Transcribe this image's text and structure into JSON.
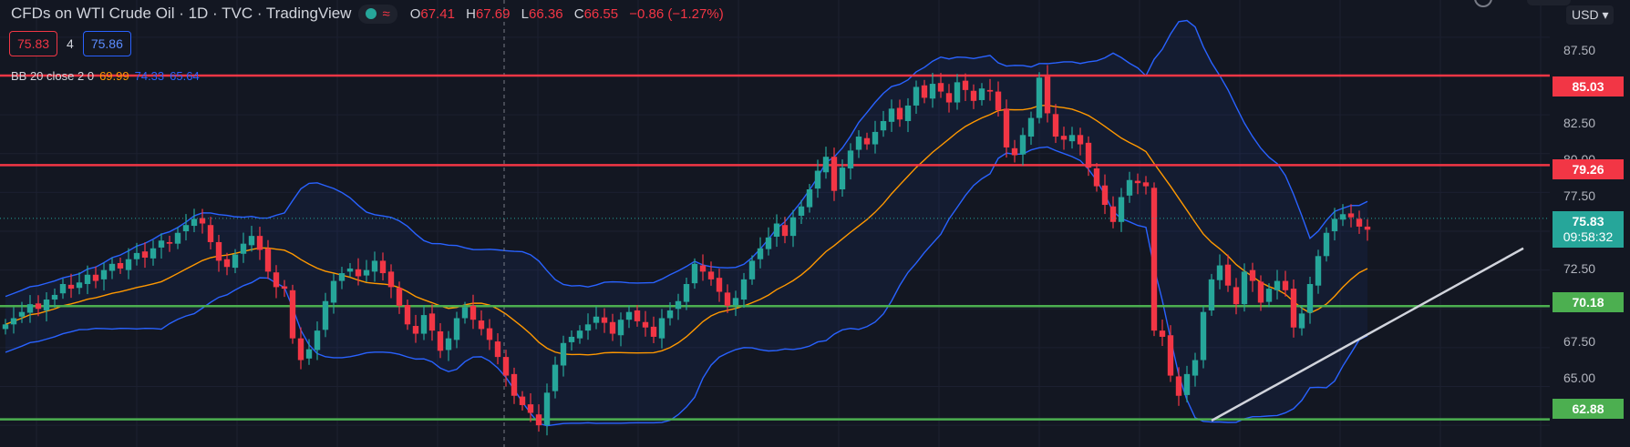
{
  "header": {
    "title": "CFDs on WTI Crude Oil · 1D · TVC · TradingView",
    "status_glyph": "≈",
    "ohlc": [
      {
        "label": "O",
        "value": "67.41"
      },
      {
        "label": "H",
        "value": "67.69"
      },
      {
        "label": "L",
        "value": "66.36"
      },
      {
        "label": "C",
        "value": "66.55"
      },
      {
        "label": "",
        "value": "−0.86 (−1.27%)"
      }
    ],
    "sell_price": "75.83",
    "spread": "4",
    "buy_price": "75.86"
  },
  "indicator": {
    "name": "BB 20 close 2 0",
    "basis": "69.99",
    "upper": "74.33",
    "lower": "65.64"
  },
  "scale": {
    "currency": "USD",
    "countdown": "09:58:32",
    "current_price": "75.83"
  },
  "colors": {
    "background": "#131722",
    "up": "#26a69a",
    "down": "#f23645",
    "bb_band": "#2962ff",
    "bb_basis": "#ff9800",
    "resistance": "#f23645",
    "support": "#4caf50",
    "trendline": "#d1d4dc"
  },
  "chart_data": {
    "type": "candlestick",
    "ylim": [
      61.1,
      89.9
    ],
    "y_ticks": [
      "87.50",
      "82.50",
      "80.00",
      "77.50",
      "72.50",
      "67.50",
      "65.00"
    ],
    "horizontal_levels": [
      {
        "price": "85.03",
        "color": "#f23645"
      },
      {
        "price": "79.26",
        "color": "#f23645"
      },
      {
        "price": "70.18",
        "color": "#4caf50"
      },
      {
        "price": "62.88",
        "color": "#4caf50"
      }
    ],
    "closes": [
      69.0,
      69.4,
      69.8,
      70.3,
      70.0,
      70.6,
      70.9,
      71.6,
      71.3,
      71.7,
      72.2,
      71.8,
      72.5,
      72.9,
      72.6,
      73.2,
      73.6,
      73.3,
      73.9,
      74.4,
      74.2,
      74.9,
      75.4,
      75.8,
      75.5,
      74.3,
      73.1,
      72.7,
      73.5,
      74.2,
      74.7,
      73.8,
      72.4,
      71.4,
      71.3,
      68.1,
      66.7,
      67.4,
      68.6,
      70.5,
      71.8,
      72.3,
      72.6,
      72.1,
      72.5,
      73.1,
      72.3,
      71.4,
      70.2,
      69.0,
      68.4,
      69.6,
      68.6,
      67.3,
      68.1,
      69.4,
      70.1,
      69.3,
      68.7,
      68.0,
      66.9,
      65.7,
      64.4,
      63.8,
      63.3,
      62.5,
      64.6,
      66.4,
      67.8,
      68.2,
      68.6,
      69.0,
      69.5,
      69.1,
      68.4,
      69.3,
      69.8,
      69.2,
      68.8,
      68.2,
      69.4,
      69.9,
      70.5,
      71.6,
      72.9,
      72.4,
      71.9,
      71.1,
      70.2,
      70.7,
      71.9,
      73.1,
      73.9,
      74.6,
      75.5,
      74.7,
      75.9,
      76.6,
      77.7,
      78.9,
      79.8,
      77.6,
      79.1,
      80.2,
      81.1,
      80.6,
      81.4,
      82.1,
      82.9,
      82.2,
      83.1,
      84.3,
      83.6,
      84.5,
      84.0,
      83.3,
      84.6,
      84.1,
      83.4,
      84.2,
      84.0,
      82.8,
      80.4,
      79.9,
      81.2,
      82.3,
      84.9,
      82.6,
      81.1,
      80.9,
      81.2,
      80.6,
      79.1,
      77.9,
      76.7,
      75.6,
      77.2,
      78.3,
      78.1,
      77.9,
      68.6,
      68.2,
      65.7,
      64.4,
      65.8,
      66.7,
      69.8,
      71.9,
      72.8,
      71.5,
      70.3,
      72.4,
      71.8,
      70.4,
      71.3,
      71.8,
      71.2,
      68.8,
      69.7,
      71.6,
      73.4,
      74.9,
      75.8,
      76.1,
      75.9,
      75.3,
      75.1
    ],
    "bb_upper_at_end": "74.33",
    "bb_basis_at_end": "69.99",
    "bb_lower_at_end": "65.64",
    "trendline": {
      "from": [
        147,
        62.8
      ],
      "to": [
        185,
        73.9
      ]
    }
  }
}
